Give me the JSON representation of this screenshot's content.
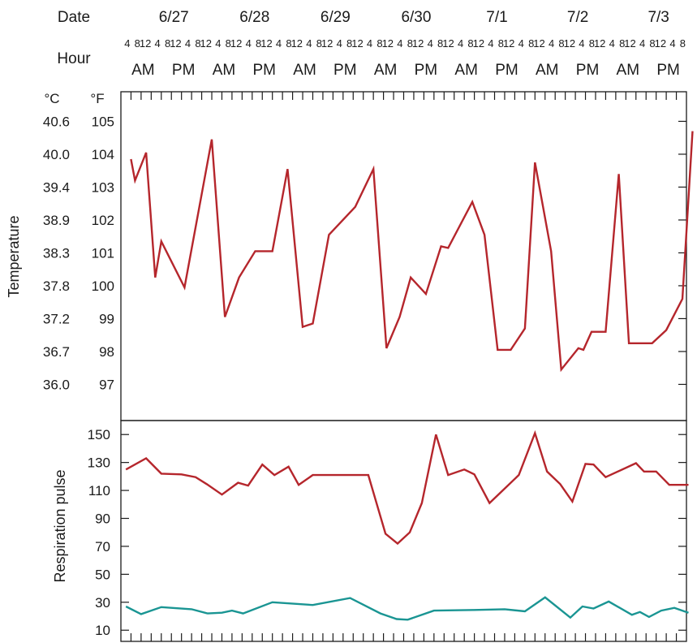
{
  "chart_data": [
    {
      "type": "line",
      "header": {
        "date_label": "Date",
        "hour_label": "Hour",
        "dates": [
          "6/27",
          "6/28",
          "6/29",
          "6/30",
          "7/1",
          "7/2",
          "7/3"
        ],
        "hours": [
          "4",
          "8",
          "12"
        ],
        "ampm": [
          "AM",
          "PM"
        ]
      },
      "ylabel": "Temperature",
      "unit_c": "°C",
      "unit_f": "°F",
      "yticks_c": [
        "40.6",
        "40.0",
        "39.4",
        "38.9",
        "38.3",
        "37.8",
        "37.2",
        "36.7",
        "36.0"
      ],
      "yticks_f": [
        105,
        104,
        103,
        102,
        101,
        100,
        99,
        98,
        97
      ],
      "ylim": [
        95.9,
        105.9
      ],
      "series": [
        {
          "color": "#b5262c",
          "points": [
            [
              1,
              103.85
            ],
            [
              1.4,
              103.2
            ],
            [
              2.5,
              104.05
            ],
            [
              3.4,
              100.25
            ],
            [
              4,
              101.35
            ],
            [
              6.3,
              99.95
            ],
            [
              9,
              104.45
            ],
            [
              10.3,
              99.05
            ],
            [
              11.7,
              100.25
            ],
            [
              13.3,
              101.05
            ],
            [
              15,
              101.05
            ],
            [
              16.5,
              103.55
            ],
            [
              18,
              98.75
            ],
            [
              19,
              98.85
            ],
            [
              20.6,
              101.55
            ],
            [
              23.2,
              102.4
            ],
            [
              25,
              103.55
            ],
            [
              26.3,
              98.1
            ],
            [
              27.6,
              99.05
            ],
            [
              28.7,
              100.25
            ],
            [
              30.2,
              99.75
            ],
            [
              31.7,
              101.2
            ],
            [
              32.4,
              101.15
            ],
            [
              34.8,
              102.55
            ],
            [
              36,
              101.55
            ],
            [
              37.3,
              98.05
            ],
            [
              38.6,
              98.05
            ],
            [
              40,
              98.7
            ],
            [
              41,
              103.75
            ],
            [
              42.6,
              101.05
            ],
            [
              43.6,
              97.45
            ],
            [
              45.3,
              98.1
            ],
            [
              45.8,
              98.05
            ],
            [
              46.6,
              98.6
            ],
            [
              48,
              98.6
            ],
            [
              49.3,
              103.4
            ],
            [
              50.3,
              98.25
            ],
            [
              52.6,
              98.25
            ],
            [
              54,
              98.65
            ],
            [
              55.6,
              99.6
            ],
            [
              56.6,
              104.7
            ]
          ]
        }
      ]
    },
    {
      "type": "line",
      "ylabel": "Respiration pulse",
      "yticks": [
        150,
        130,
        110,
        90,
        70,
        50,
        30,
        10
      ],
      "ylim": [
        2,
        160
      ],
      "series": [
        {
          "color": "#b5262c",
          "points": [
            [
              0.5,
              125
            ],
            [
              2.5,
              133
            ],
            [
              4,
              122
            ],
            [
              6,
              121.5
            ],
            [
              7.4,
              119.5
            ],
            [
              8.5,
              114.5
            ],
            [
              10,
              107
            ],
            [
              11.6,
              115.5
            ],
            [
              12.6,
              113.5
            ],
            [
              14,
              128.5
            ],
            [
              15.2,
              121
            ],
            [
              16.6,
              127
            ],
            [
              17.6,
              114
            ],
            [
              19,
              121
            ],
            [
              23,
              121
            ],
            [
              24.5,
              121
            ],
            [
              26.2,
              79
            ],
            [
              27.4,
              72
            ],
            [
              28.6,
              80
            ],
            [
              29.8,
              101
            ],
            [
              31.2,
              150
            ],
            [
              32.4,
              121
            ],
            [
              34,
              125
            ],
            [
              35,
              121.5
            ],
            [
              36.5,
              101
            ],
            [
              38.1,
              112
            ],
            [
              39.4,
              121
            ],
            [
              41,
              151
            ],
            [
              42.2,
              123.5
            ],
            [
              43.5,
              114.5
            ],
            [
              44.7,
              102
            ],
            [
              46,
              129
            ],
            [
              46.8,
              128.5
            ],
            [
              48,
              119.5
            ],
            [
              51,
              129.5
            ],
            [
              51.8,
              123.5
            ],
            [
              53,
              123.5
            ],
            [
              54.3,
              114
            ],
            [
              56.2,
              114
            ]
          ]
        },
        {
          "color": "#1a9593",
          "points": [
            [
              0.5,
              27
            ],
            [
              2,
              21.5
            ],
            [
              4,
              26.5
            ],
            [
              7,
              25
            ],
            [
              8.6,
              22
            ],
            [
              10,
              22.5
            ],
            [
              11,
              24
            ],
            [
              12.1,
              22
            ],
            [
              15,
              30
            ],
            [
              19,
              28
            ],
            [
              22.7,
              33
            ],
            [
              25.7,
              22
            ],
            [
              27.3,
              18
            ],
            [
              28.4,
              17.5
            ],
            [
              31,
              24
            ],
            [
              35,
              24.5
            ],
            [
              38,
              25
            ],
            [
              40,
              23.5
            ],
            [
              42,
              33.5
            ],
            [
              44.5,
              19
            ],
            [
              45.7,
              27
            ],
            [
              46.8,
              25.5
            ],
            [
              48.3,
              30.5
            ],
            [
              50.6,
              21
            ],
            [
              51.4,
              23
            ],
            [
              52.3,
              19.5
            ],
            [
              53.5,
              24
            ],
            [
              54.8,
              26
            ],
            [
              56.2,
              22.5
            ]
          ]
        }
      ]
    }
  ]
}
